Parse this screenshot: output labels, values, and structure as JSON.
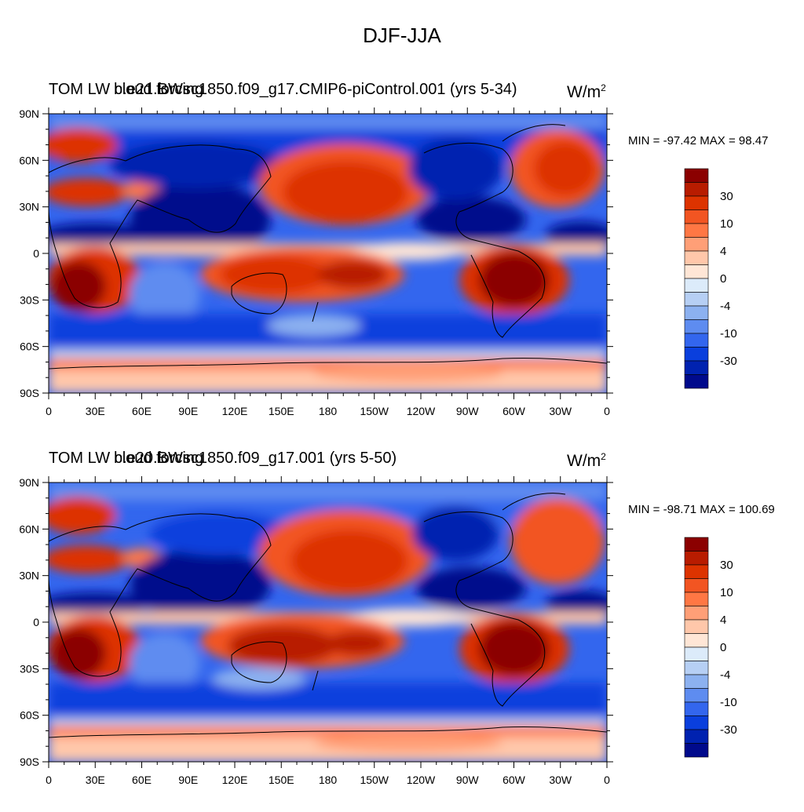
{
  "figure": {
    "title": "DJF-JJA"
  },
  "panels": [
    {
      "left_string": "TOM LW cloud forcing",
      "center_string": "b.e21.BWsc1850.f09_g17.CMIP6-piControl.001 (yrs 5-34)",
      "units_base": "W/m",
      "units_exp": "2",
      "min_max": "MIN = -97.42 MAX =  98.47"
    },
    {
      "left_string": "TOM LW cloud forcing",
      "center_string": "b.e20.BWsc1850.f09_g17.001 (yrs 5-50)",
      "units_base": "W/m",
      "units_exp": "2",
      "min_max": "MIN = -98.71 MAX = 100.69"
    }
  ],
  "axes": {
    "lon_labels": [
      "0",
      "30E",
      "60E",
      "90E",
      "120E",
      "150E",
      "180",
      "150W",
      "120W",
      "90W",
      "60W",
      "30W",
      "0"
    ],
    "lat_labels": [
      "90N",
      "60N",
      "30N",
      "0",
      "30S",
      "60S",
      "90S"
    ]
  },
  "colorbar": {
    "colors": [
      "#8B0000",
      "#B81C00",
      "#DD3300",
      "#F25522",
      "#FF7744",
      "#FF9F77",
      "#FFC7AA",
      "#FFE6D6",
      "#DCEBFA",
      "#B6CFF4",
      "#8CB1F0",
      "#5E8CF0",
      "#3366EE",
      "#0A3FDD",
      "#0022B0",
      "#000A8C"
    ],
    "labels": [
      "30",
      "10",
      "4",
      "0",
      "-4",
      "-10",
      "-30"
    ]
  }
}
